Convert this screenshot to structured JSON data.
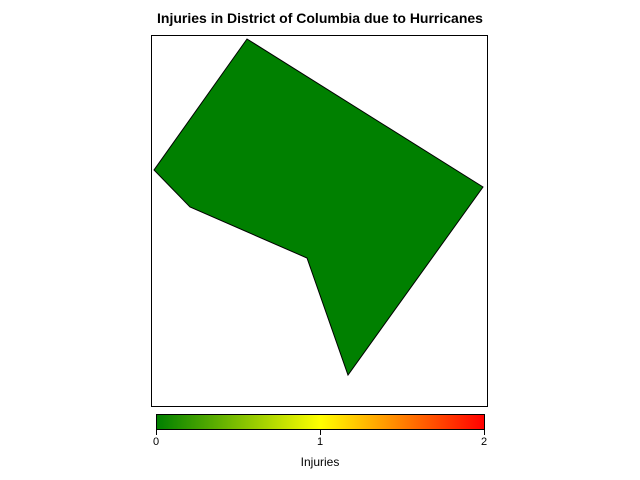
{
  "title": "Injuries in District of Columbia due to Hurricanes",
  "colors": {
    "region_fill": "#008000",
    "outline": "#000000",
    "scale_low": "#008000",
    "scale_mid": "#ffff00",
    "scale_high": "#ff0000"
  },
  "chart_data": {
    "type": "choropleth",
    "title": "Injuries in District of Columbia due to Hurricanes",
    "regions": [
      {
        "name": "District of Columbia",
        "value": 0
      }
    ],
    "legend": {
      "title": "Injuries",
      "range": [
        0,
        2
      ],
      "ticks": [
        "0",
        "1",
        "2"
      ],
      "position": "bottom"
    }
  }
}
